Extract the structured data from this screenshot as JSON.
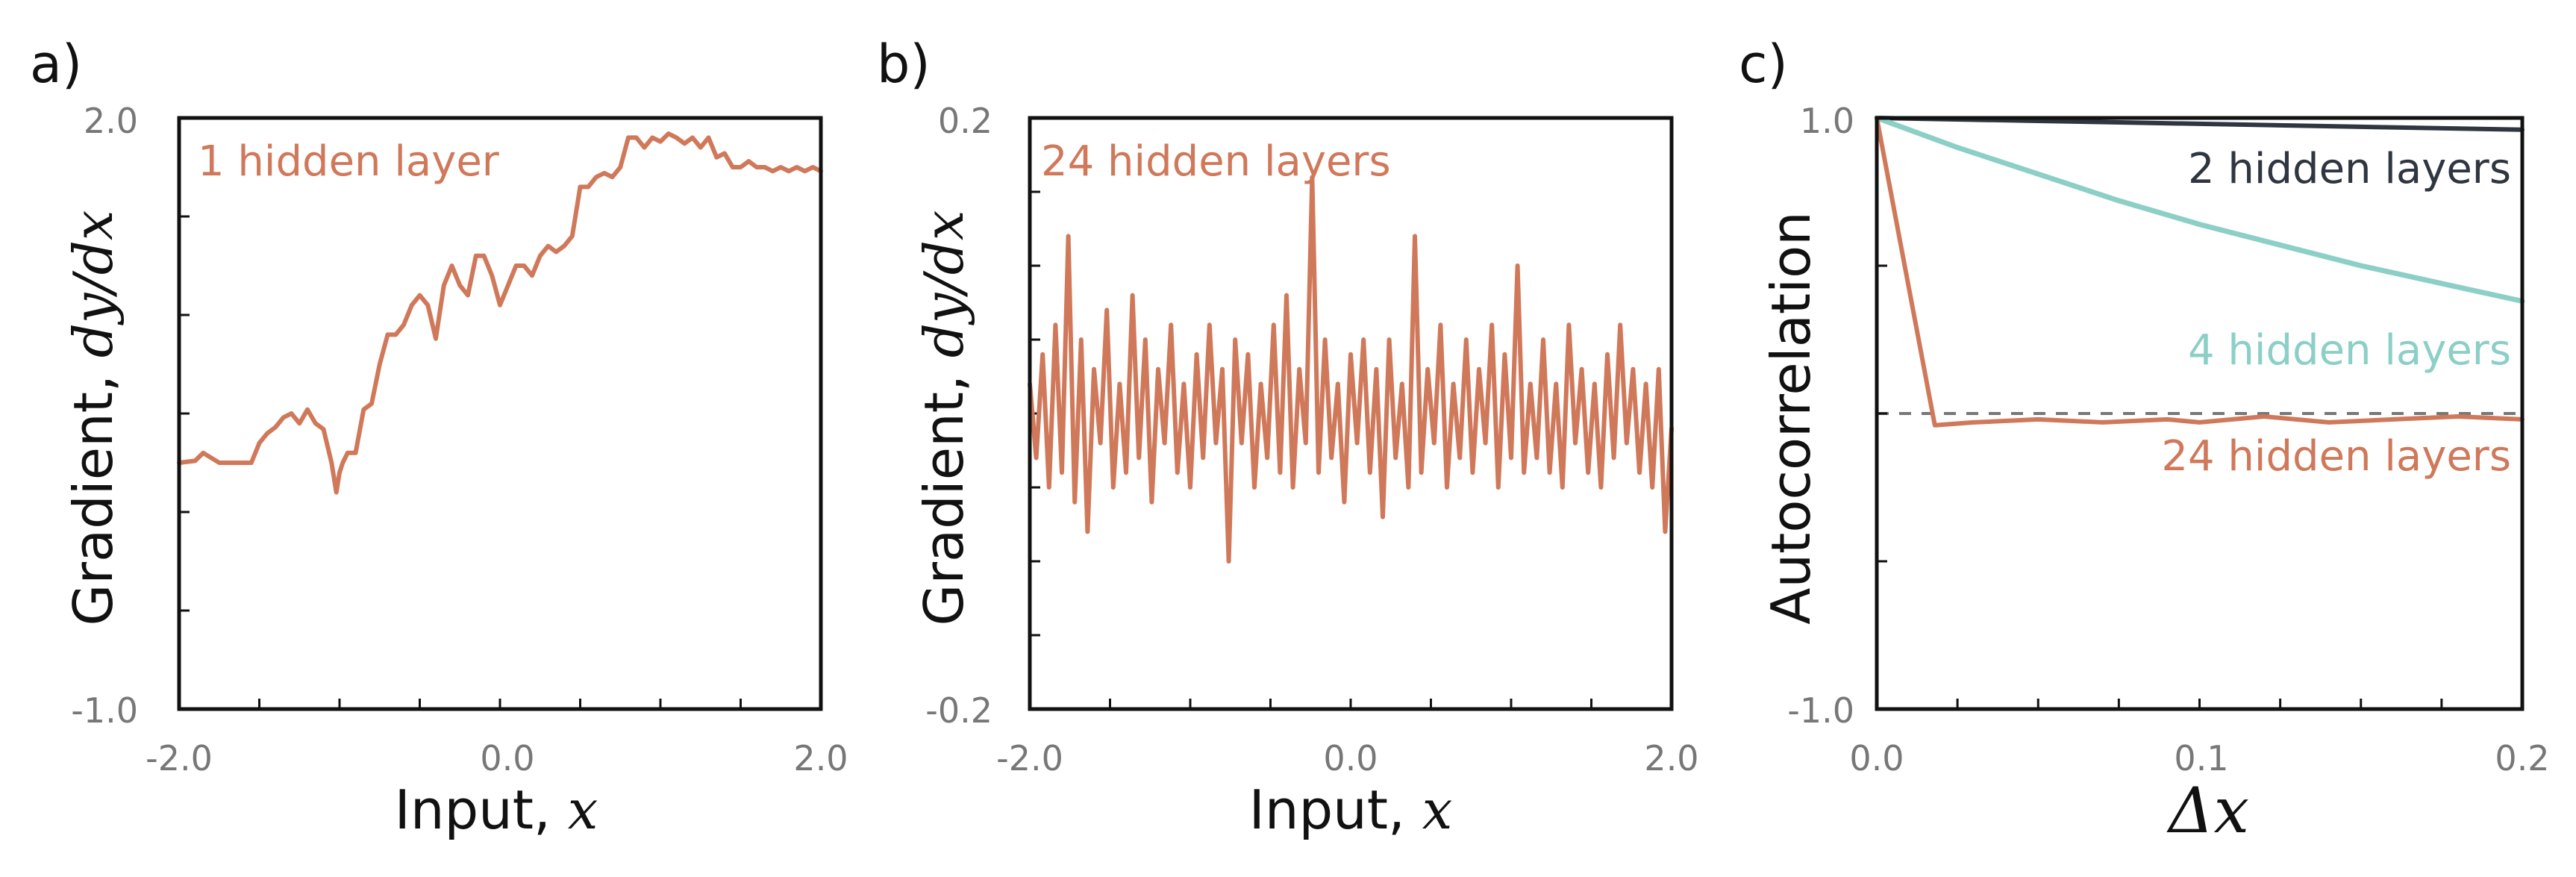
{
  "colors": {
    "deep": "#d0785a",
    "mid": "#8ccfc6",
    "shallow": "#2f3640",
    "zero_line": "#777777",
    "tick_text": "#777777",
    "axis": "#111111"
  },
  "chart_data": [
    {
      "panel": "a)",
      "type": "line",
      "annotation": "1 hidden layer",
      "xlabel": {
        "text": "Input, ",
        "math": "x"
      },
      "ylabel": {
        "text": "Gradient, ",
        "math": "dy/dx"
      },
      "xlim": [
        -2.0,
        2.0
      ],
      "ylim": [
        -1.0,
        2.0
      ],
      "x_tick_labels": [
        "-2.0",
        "0.0",
        "2.0"
      ],
      "y_tick_labels": [
        "-1.0",
        "2.0"
      ],
      "x_ticks": [
        -2,
        -1.5,
        -1,
        -0.5,
        0,
        0.5,
        1,
        1.5,
        2
      ],
      "y_ticks": [
        -1.0,
        -0.5,
        0.0,
        0.5,
        1.0,
        1.5,
        2.0
      ],
      "series": [
        {
          "color": "deep",
          "x": [
            -2.0,
            -1.9,
            -1.85,
            -1.75,
            -1.7,
            -1.55,
            -1.5,
            -1.45,
            -1.4,
            -1.35,
            -1.3,
            -1.25,
            -1.2,
            -1.15,
            -1.1,
            -1.05,
            -1.02,
            -1.0,
            -0.98,
            -0.95,
            -0.9,
            -0.85,
            -0.8,
            -0.75,
            -0.7,
            -0.65,
            -0.6,
            -0.55,
            -0.5,
            -0.45,
            -0.4,
            -0.35,
            -0.3,
            -0.25,
            -0.2,
            -0.15,
            -0.1,
            -0.05,
            0.0,
            0.05,
            0.1,
            0.15,
            0.2,
            0.25,
            0.3,
            0.35,
            0.4,
            0.45,
            0.5,
            0.55,
            0.6,
            0.65,
            0.7,
            0.75,
            0.8,
            0.85,
            0.9,
            0.95,
            1.0,
            1.05,
            1.1,
            1.15,
            1.2,
            1.25,
            1.3,
            1.35,
            1.4,
            1.45,
            1.5,
            1.55,
            1.6,
            1.65,
            1.7,
            1.75,
            1.8,
            1.85,
            1.9,
            1.95,
            2.0
          ],
          "y": [
            0.25,
            0.26,
            0.3,
            0.25,
            0.25,
            0.25,
            0.35,
            0.4,
            0.43,
            0.48,
            0.5,
            0.45,
            0.52,
            0.45,
            0.42,
            0.25,
            0.1,
            0.2,
            0.25,
            0.3,
            0.3,
            0.52,
            0.55,
            0.75,
            0.9,
            0.9,
            0.95,
            1.05,
            1.1,
            1.05,
            0.88,
            1.15,
            1.25,
            1.15,
            1.1,
            1.3,
            1.3,
            1.2,
            1.05,
            1.15,
            1.25,
            1.25,
            1.2,
            1.3,
            1.35,
            1.32,
            1.35,
            1.4,
            1.65,
            1.65,
            1.7,
            1.72,
            1.7,
            1.75,
            1.9,
            1.9,
            1.85,
            1.9,
            1.88,
            1.92,
            1.9,
            1.87,
            1.9,
            1.85,
            1.9,
            1.8,
            1.82,
            1.75,
            1.75,
            1.78,
            1.75,
            1.75,
            1.73,
            1.75,
            1.73,
            1.75,
            1.73,
            1.75,
            1.73
          ]
        }
      ]
    },
    {
      "panel": "b)",
      "type": "line",
      "annotation": "24 hidden layers",
      "xlabel": {
        "text": "Input, ",
        "math": "x"
      },
      "ylabel": {
        "text": "Gradient, ",
        "math": "dy/dx"
      },
      "xlim": [
        -2.0,
        2.0
      ],
      "ylim": [
        -0.2,
        0.2
      ],
      "x_tick_labels": [
        "-2.0",
        "0.0",
        "2.0"
      ],
      "y_tick_labels": [
        "-0.2",
        "0.2"
      ],
      "x_ticks": [
        -2,
        -1.5,
        -1,
        -0.5,
        0,
        0.5,
        1,
        1.5,
        2
      ],
      "y_ticks": [
        -0.2,
        -0.15,
        -0.1,
        -0.05,
        0.0,
        0.05,
        0.1,
        0.15,
        0.2
      ],
      "series": [
        {
          "color": "deep",
          "x": [
            -2.0,
            -1.96,
            -1.92,
            -1.88,
            -1.84,
            -1.8,
            -1.76,
            -1.72,
            -1.68,
            -1.64,
            -1.6,
            -1.56,
            -1.52,
            -1.48,
            -1.44,
            -1.4,
            -1.36,
            -1.32,
            -1.28,
            -1.24,
            -1.2,
            -1.16,
            -1.12,
            -1.08,
            -1.04,
            -1.0,
            -0.96,
            -0.92,
            -0.88,
            -0.84,
            -0.8,
            -0.76,
            -0.72,
            -0.68,
            -0.64,
            -0.6,
            -0.56,
            -0.52,
            -0.48,
            -0.44,
            -0.4,
            -0.36,
            -0.32,
            -0.28,
            -0.24,
            -0.2,
            -0.16,
            -0.12,
            -0.08,
            -0.04,
            0.0,
            0.04,
            0.08,
            0.12,
            0.16,
            0.2,
            0.24,
            0.28,
            0.32,
            0.36,
            0.4,
            0.44,
            0.48,
            0.52,
            0.56,
            0.6,
            0.64,
            0.68,
            0.72,
            0.76,
            0.8,
            0.84,
            0.88,
            0.92,
            0.96,
            1.0,
            1.04,
            1.08,
            1.12,
            1.16,
            1.2,
            1.24,
            1.28,
            1.32,
            1.36,
            1.4,
            1.44,
            1.48,
            1.52,
            1.56,
            1.6,
            1.64,
            1.68,
            1.72,
            1.76,
            1.8,
            1.84,
            1.88,
            1.92,
            1.96,
            2.0
          ],
          "y": [
            0.02,
            -0.03,
            0.04,
            -0.05,
            0.06,
            -0.04,
            0.12,
            -0.06,
            0.05,
            -0.08,
            0.03,
            -0.02,
            0.07,
            -0.05,
            0.02,
            -0.04,
            0.08,
            -0.03,
            0.05,
            -0.06,
            0.03,
            -0.02,
            0.06,
            -0.04,
            0.02,
            -0.05,
            0.04,
            -0.03,
            0.06,
            -0.02,
            0.03,
            -0.1,
            0.05,
            -0.02,
            0.04,
            -0.05,
            0.02,
            -0.03,
            0.06,
            -0.04,
            0.08,
            -0.05,
            0.03,
            -0.02,
            0.16,
            -0.04,
            0.05,
            -0.03,
            0.02,
            -0.06,
            0.04,
            -0.02,
            0.05,
            -0.04,
            0.03,
            -0.07,
            0.05,
            -0.03,
            0.02,
            -0.05,
            0.12,
            -0.04,
            0.03,
            -0.02,
            0.06,
            -0.05,
            0.02,
            -0.03,
            0.05,
            -0.04,
            0.03,
            -0.02,
            0.06,
            -0.05,
            0.04,
            -0.03,
            0.1,
            -0.04,
            0.02,
            -0.03,
            0.05,
            -0.04,
            0.02,
            -0.05,
            0.06,
            -0.02,
            0.03,
            -0.04,
            0.02,
            -0.05,
            0.04,
            -0.03,
            0.06,
            -0.02,
            0.03,
            -0.04,
            0.02,
            -0.05,
            0.03,
            -0.08,
            -0.01
          ]
        }
      ]
    },
    {
      "panel": "c)",
      "type": "line",
      "xlabel": {
        "text": "",
        "math": "Δx"
      },
      "ylabel": {
        "text": "Autocorrelation",
        "math": ""
      },
      "xlim": [
        0.0,
        0.2
      ],
      "ylim": [
        -1.0,
        1.0
      ],
      "x_tick_labels": [
        "0.0",
        "0.1",
        "0.2"
      ],
      "y_tick_labels": [
        "-1.0",
        "1.0"
      ],
      "x_ticks": [
        0,
        0.025,
        0.05,
        0.075,
        0.1,
        0.125,
        0.15,
        0.175,
        0.2
      ],
      "y_ticks": [
        -1.0,
        -0.5,
        0.0,
        0.5,
        1.0
      ],
      "reference_line": 0.0,
      "series": [
        {
          "name": "2 hidden layers",
          "color": "shallow",
          "x": [
            0.0,
            0.05,
            0.1,
            0.15,
            0.2
          ],
          "y": [
            1.0,
            0.99,
            0.98,
            0.97,
            0.96
          ]
        },
        {
          "name": "4 hidden layers",
          "color": "mid",
          "x": [
            0.0,
            0.025,
            0.05,
            0.075,
            0.1,
            0.125,
            0.15,
            0.175,
            0.2
          ],
          "y": [
            1.0,
            0.9,
            0.81,
            0.72,
            0.64,
            0.57,
            0.5,
            0.44,
            0.38
          ]
        },
        {
          "name": "24 hidden layers",
          "color": "deep",
          "x": [
            0.0,
            0.018,
            0.03,
            0.05,
            0.07,
            0.09,
            0.1,
            0.12,
            0.14,
            0.16,
            0.18,
            0.2
          ],
          "y": [
            1.0,
            -0.04,
            -0.03,
            -0.02,
            -0.03,
            -0.02,
            -0.03,
            -0.01,
            -0.03,
            -0.02,
            -0.01,
            -0.02
          ]
        }
      ]
    }
  ]
}
